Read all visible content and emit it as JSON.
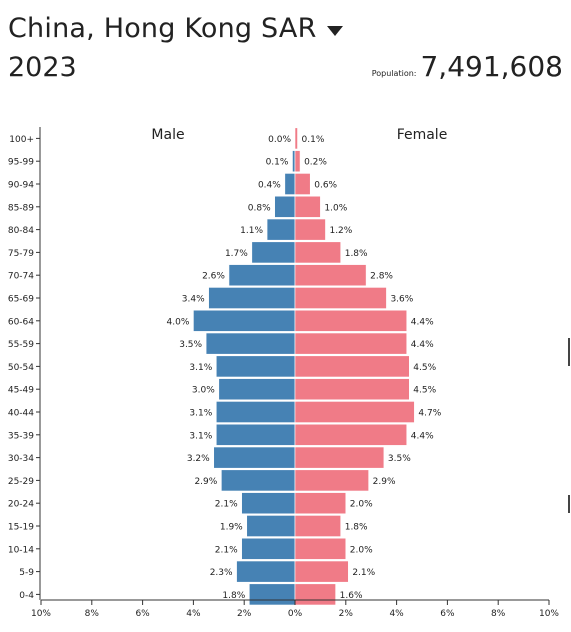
{
  "header": {
    "country": "China, Hong Kong SAR",
    "year": "2023",
    "population_label": "Population:",
    "population_value": "7,491,608"
  },
  "colors": {
    "male": "#4682b4",
    "female": "#f07b87",
    "text": "#222222"
  },
  "chart_data": {
    "type": "bar",
    "orientation": "horizontal-diverging",
    "categories": [
      "100+",
      "95-99",
      "90-94",
      "85-89",
      "80-84",
      "75-79",
      "70-74",
      "65-69",
      "60-64",
      "55-59",
      "50-54",
      "45-49",
      "40-44",
      "35-39",
      "30-34",
      "25-29",
      "20-24",
      "15-19",
      "10-14",
      "5-9",
      "0-4"
    ],
    "series": [
      {
        "name": "Male",
        "side": "left",
        "values": [
          0.0,
          0.1,
          0.4,
          0.8,
          1.1,
          1.7,
          2.6,
          3.4,
          4.0,
          3.5,
          3.1,
          3.0,
          3.1,
          3.1,
          3.2,
          2.9,
          2.1,
          1.9,
          2.1,
          2.3,
          1.8
        ],
        "labels": [
          "0.0%",
          "0.1%",
          "0.4%",
          "0.8%",
          "1.1%",
          "1.7%",
          "2.6%",
          "3.4%",
          "4.0%",
          "3.5%",
          "3.1%",
          "3.0%",
          "3.1%",
          "3.1%",
          "3.2%",
          "2.9%",
          "2.1%",
          "1.9%",
          "2.1%",
          "2.3%",
          "1.8%"
        ]
      },
      {
        "name": "Female",
        "side": "right",
        "values": [
          0.1,
          0.2,
          0.6,
          1.0,
          1.2,
          1.8,
          2.8,
          3.6,
          4.4,
          4.4,
          4.5,
          4.5,
          4.7,
          4.4,
          3.5,
          2.9,
          2.0,
          1.8,
          2.0,
          2.1,
          1.6
        ],
        "labels": [
          "0.1%",
          "0.2%",
          "0.6%",
          "1.0%",
          "1.2%",
          "1.8%",
          "2.8%",
          "3.6%",
          "4.4%",
          "4.4%",
          "4.5%",
          "4.5%",
          "4.7%",
          "4.4%",
          "3.5%",
          "2.9%",
          "2.0%",
          "1.8%",
          "2.0%",
          "2.1%",
          "1.6%"
        ]
      }
    ],
    "xlim": [
      -10,
      10
    ],
    "xticks": [
      -10,
      -8,
      -6,
      -4,
      -2,
      0,
      2,
      4,
      6,
      8,
      10
    ],
    "xtick_labels": [
      "10%",
      "8%",
      "6%",
      "4%",
      "2%",
      "0%",
      "2%",
      "4%",
      "6%",
      "8%",
      "10%"
    ],
    "grid": false
  }
}
